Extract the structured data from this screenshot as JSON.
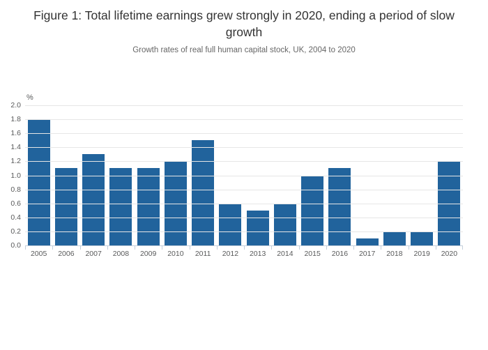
{
  "header": {
    "title": "Figure 1: Total lifetime earnings grew strongly in 2020, ending a period of slow growth",
    "subtitle": "Growth rates of real full human capital stock, UK, 2004 to 2020"
  },
  "chart_data": {
    "type": "bar",
    "title": "Figure 1: Total lifetime earnings grew strongly in 2020, ending a period of slow growth",
    "subtitle": "Growth rates of real full human capital stock, UK, 2004 to 2020",
    "unit_label": "%",
    "categories": [
      "2005",
      "2006",
      "2007",
      "2008",
      "2009",
      "2010",
      "2011",
      "2012",
      "2013",
      "2014",
      "2015",
      "2016",
      "2017",
      "2018",
      "2019",
      "2020"
    ],
    "values": [
      1.8,
      1.1,
      1.3,
      1.1,
      1.1,
      1.2,
      1.5,
      0.6,
      0.5,
      0.6,
      1.0,
      1.1,
      0.1,
      0.2,
      0.2,
      1.2
    ],
    "series_name": "Growth rate",
    "xlabel": "",
    "ylabel": "%",
    "ylim": [
      0.0,
      2.0
    ],
    "ytick_step": 0.2,
    "ytick_labels": [
      "0.0",
      "0.2",
      "0.4",
      "0.6",
      "0.8",
      "1.0",
      "1.2",
      "1.4",
      "1.6",
      "1.8",
      "2.0"
    ],
    "grid": "horizontal",
    "legend": "none",
    "colors": {
      "bar": "#21639c",
      "gridline": "#e6e6e6",
      "axis_line": "#c3cfdb",
      "tick_label": "#58595a",
      "title": "#333333",
      "subtitle": "#666666"
    }
  }
}
